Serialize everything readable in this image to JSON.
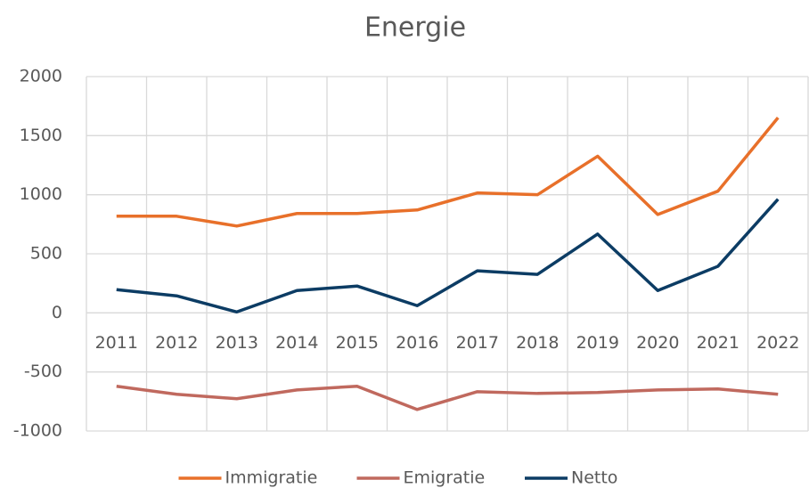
{
  "chart_data": {
    "type": "line",
    "title": "Energie",
    "categories": [
      "2011",
      "2012",
      "2013",
      "2014",
      "2015",
      "2016",
      "2017",
      "2018",
      "2019",
      "2020",
      "2021",
      "2022"
    ],
    "series": [
      {
        "name": "Immigratie",
        "color": "#e8702a",
        "values": [
          818,
          818,
          735,
          841,
          841,
          871,
          1015,
          1000,
          1326,
          833,
          1030,
          1652
        ]
      },
      {
        "name": "Emigratie",
        "color": "#c0695e",
        "values": [
          -621,
          -689,
          -727,
          -652,
          -621,
          -818,
          -667,
          -682,
          -674,
          -652,
          -644,
          -689
        ]
      },
      {
        "name": "Netto",
        "color": "#0c3c64",
        "values": [
          197,
          144,
          8,
          189,
          227,
          61,
          356,
          326,
          667,
          189,
          394,
          962
        ]
      }
    ],
    "ylim": [
      -1000,
      2000
    ],
    "yticks": [
      -1000,
      -500,
      0,
      500,
      1000,
      1500,
      2000
    ],
    "grid": true,
    "legend": "bottom"
  }
}
